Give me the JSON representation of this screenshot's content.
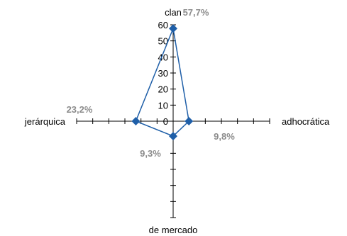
{
  "chart_data": {
    "type": "radar",
    "categories": [
      "clan",
      "adhocrática",
      "de mercado",
      "jerárquica"
    ],
    "values": [
      57.7,
      9.8,
      9.3,
      23.2
    ],
    "data_labels": [
      "57,7%",
      "9,8%",
      "9,3%",
      "23,2%"
    ],
    "axis_ticks": [
      0,
      10,
      20,
      30,
      40,
      50,
      60
    ],
    "axis_range": [
      0,
      60
    ],
    "series_color": "#1F5FA8",
    "label_color": "#8C8C8C",
    "grid": false,
    "legend": "none"
  }
}
